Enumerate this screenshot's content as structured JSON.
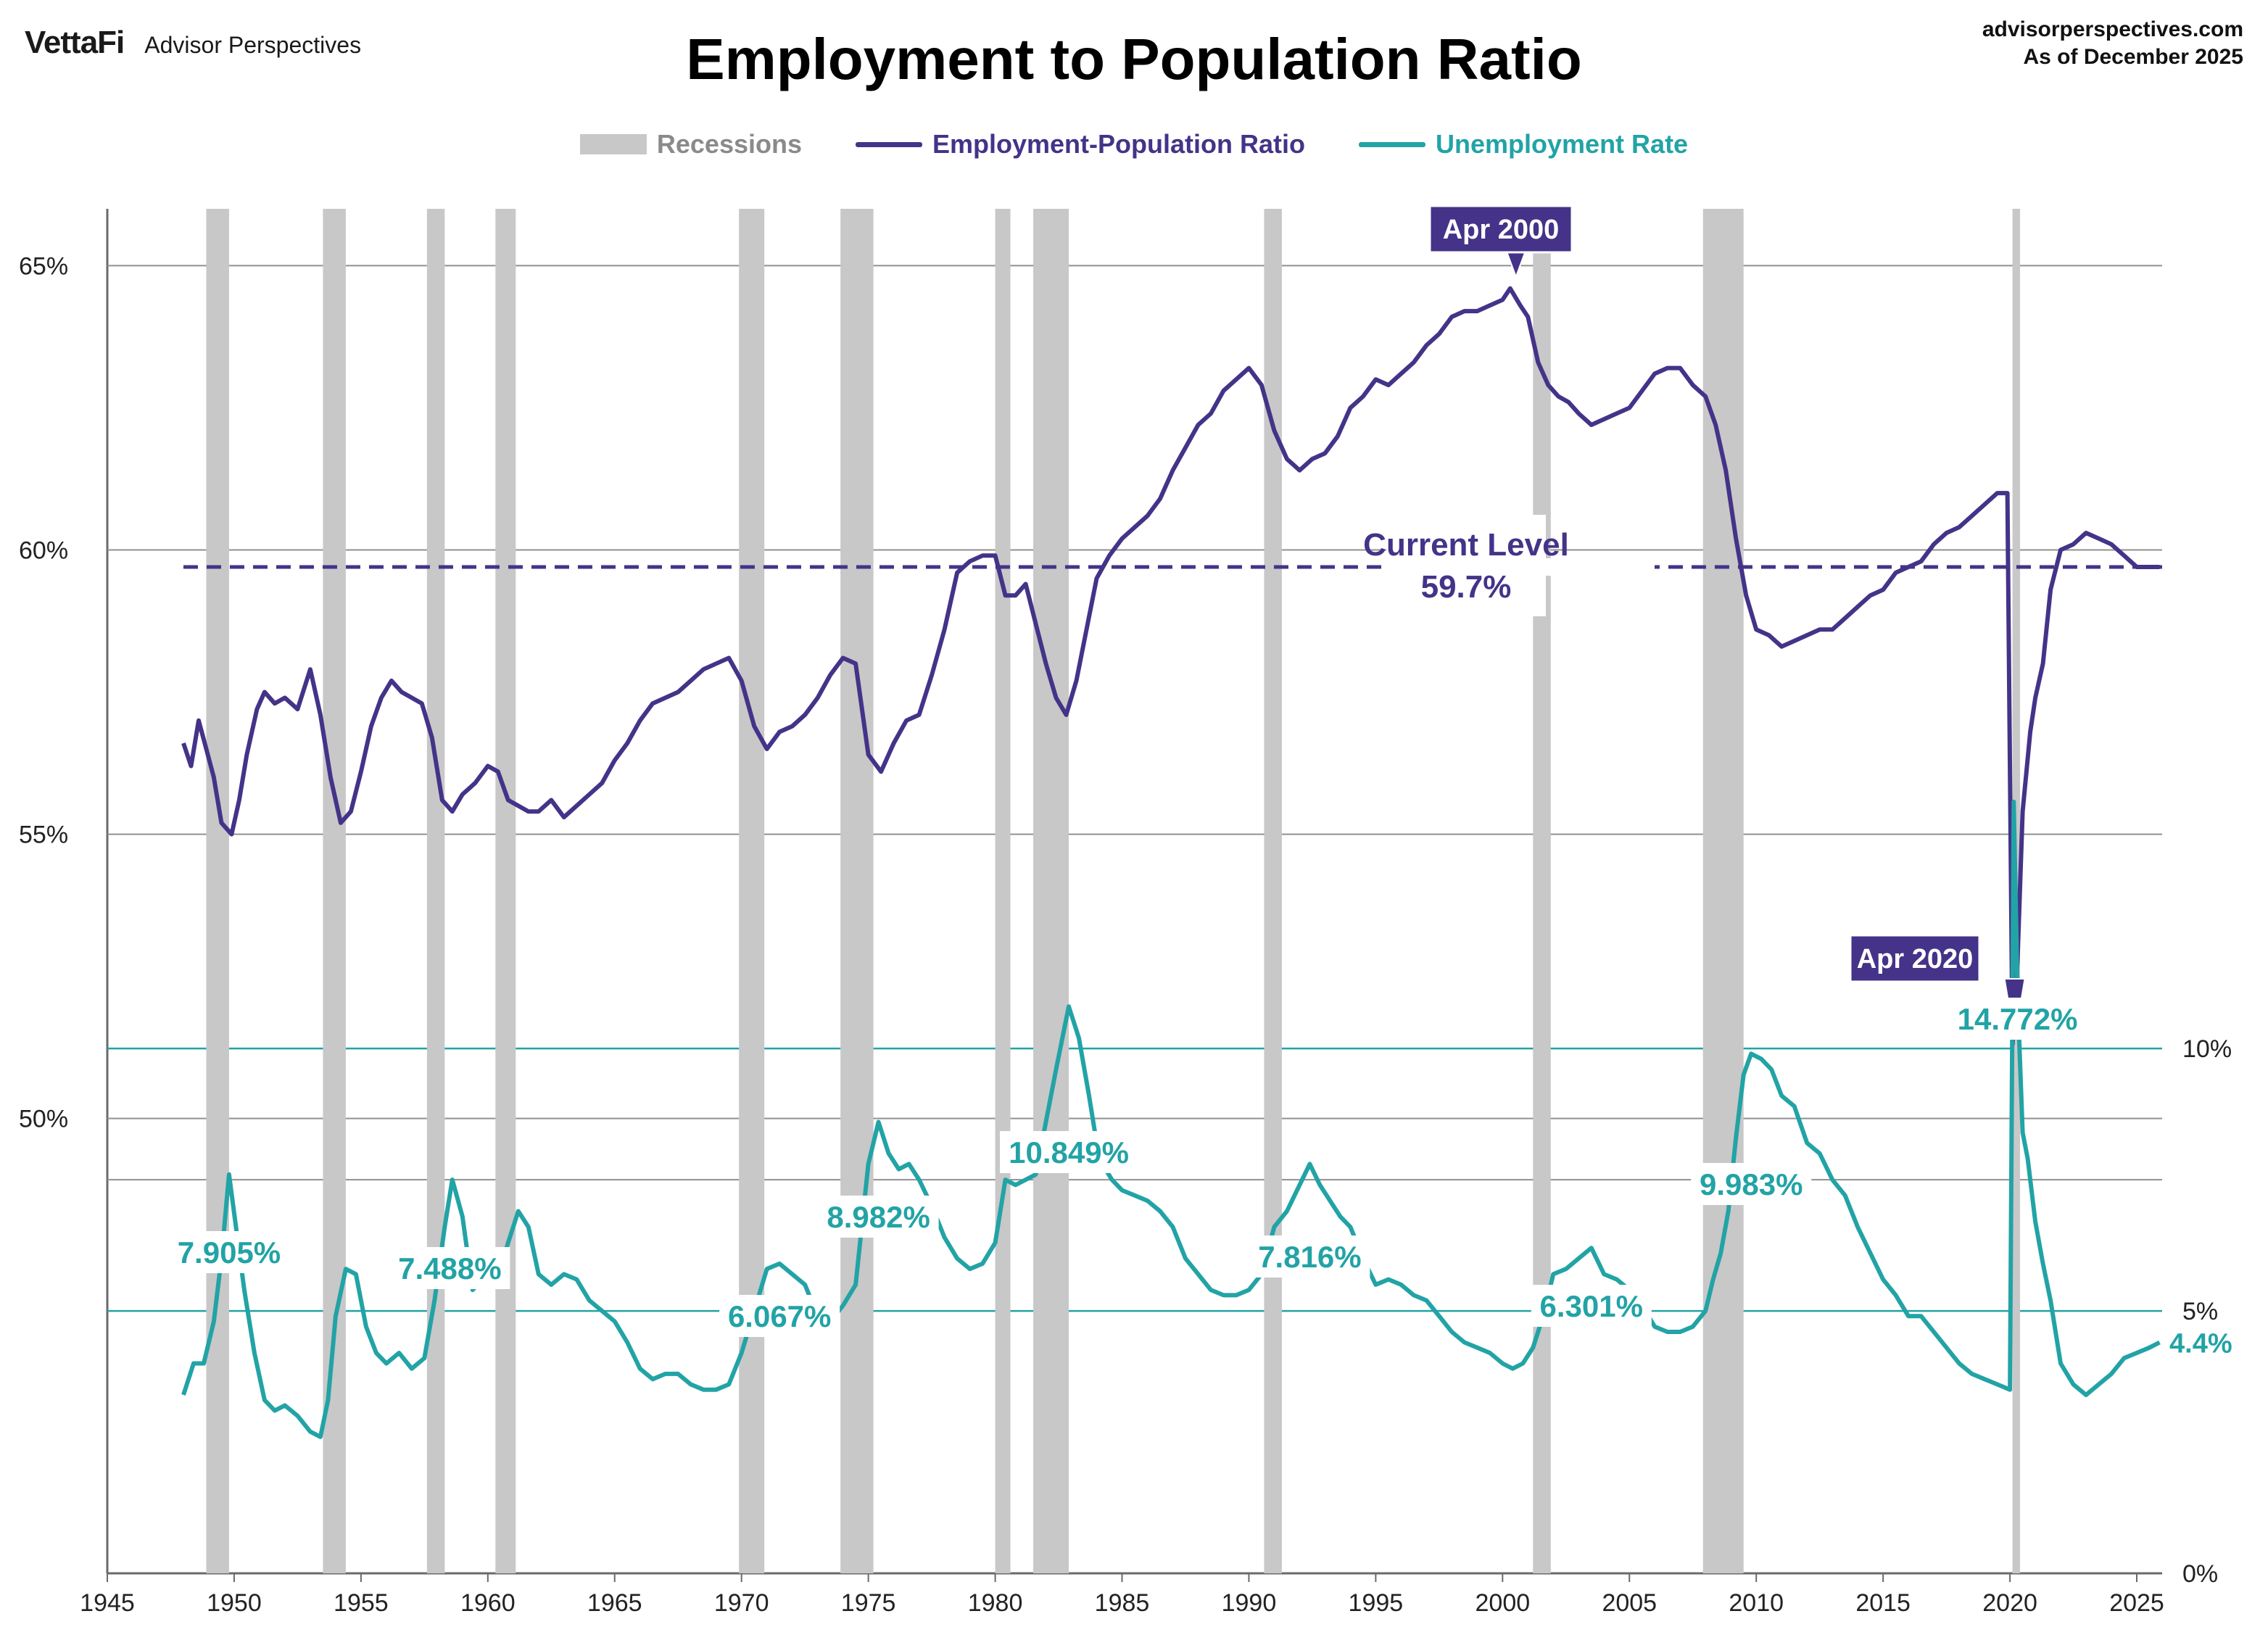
{
  "header": {
    "brand_logo": "VettaFi",
    "brand_sub": "Advisor Perspectives",
    "title": "Employment to Population Ratio",
    "source_line1": "advisorperspectives.com",
    "source_line2": "As of December 2025"
  },
  "legend": {
    "recessions": "Recessions",
    "epop": "Employment-Population Ratio",
    "unemp": "Unemployment Rate"
  },
  "colors": {
    "epop": "#443388",
    "unemp": "#22a3a6",
    "recession": "#c8c8c8",
    "grid": "#909090"
  },
  "chart_data": {
    "type": "line",
    "title": "Employment to Population Ratio",
    "x_ticks": [
      1945,
      1950,
      1955,
      1960,
      1965,
      1970,
      1975,
      1980,
      1985,
      1990,
      1995,
      2000,
      2005,
      2010,
      2015,
      2020,
      2025
    ],
    "xlim": [
      1945,
      2026
    ],
    "left_axis": {
      "ticks": [
        "50%",
        "55%",
        "60%",
        "65%"
      ],
      "values": [
        50,
        55,
        60,
        65
      ],
      "range": [
        42,
        66
      ]
    },
    "right_axis": {
      "ticks": [
        "0%",
        "5%",
        "10%"
      ],
      "values": [
        0,
        5,
        10
      ],
      "range": [
        0,
        26
      ]
    },
    "recessions": [
      [
        1948.9,
        1949.8
      ],
      [
        1953.5,
        1954.4
      ],
      [
        1957.6,
        1958.3
      ],
      [
        1960.3,
        1961.1
      ],
      [
        1969.9,
        1970.9
      ],
      [
        1973.9,
        1975.2
      ],
      [
        1980.0,
        1980.6
      ],
      [
        1981.5,
        1982.9
      ],
      [
        1990.6,
        1991.3
      ],
      [
        2001.2,
        2001.9
      ],
      [
        2007.9,
        2009.5
      ],
      [
        2020.1,
        2020.4
      ]
    ],
    "series": [
      {
        "name": "Employment-Population Ratio",
        "axis": "left",
        "x": [
          1948.0,
          1948.3,
          1948.6,
          1948.9,
          1949.2,
          1949.5,
          1949.9,
          1950.2,
          1950.5,
          1950.9,
          1951.2,
          1951.6,
          1952.0,
          1952.5,
          1953.0,
          1953.4,
          1953.8,
          1954.2,
          1954.6,
          1955.0,
          1955.4,
          1955.8,
          1956.2,
          1956.6,
          1957.0,
          1957.4,
          1957.8,
          1958.2,
          1958.6,
          1959.0,
          1959.5,
          1960.0,
          1960.4,
          1960.8,
          1961.2,
          1961.6,
          1962.0,
          1962.5,
          1963.0,
          1963.5,
          1964.0,
          1964.5,
          1965.0,
          1965.5,
          1966.0,
          1966.5,
          1967.0,
          1967.5,
          1968.0,
          1968.5,
          1969.0,
          1969.5,
          1970.0,
          1970.5,
          1971.0,
          1971.5,
          1972.0,
          1972.5,
          1973.0,
          1973.5,
          1974.0,
          1974.5,
          1975.0,
          1975.5,
          1976.0,
          1976.5,
          1977.0,
          1977.5,
          1978.0,
          1978.5,
          1979.0,
          1979.5,
          1980.0,
          1980.4,
          1980.8,
          1981.2,
          1981.6,
          1982.0,
          1982.4,
          1982.8,
          1983.2,
          1983.6,
          1984.0,
          1984.5,
          1985.0,
          1985.5,
          1986.0,
          1986.5,
          1987.0,
          1987.5,
          1988.0,
          1988.5,
          1989.0,
          1989.5,
          1990.0,
          1990.5,
          1991.0,
          1991.5,
          1992.0,
          1992.5,
          1993.0,
          1993.5,
          1994.0,
          1994.5,
          1995.0,
          1995.5,
          1996.0,
          1996.5,
          1997.0,
          1997.5,
          1998.0,
          1998.5,
          1999.0,
          1999.5,
          2000.0,
          2000.3,
          2000.7,
          2001.0,
          2001.4,
          2001.8,
          2002.2,
          2002.6,
          2003.0,
          2003.5,
          2004.0,
          2004.5,
          2005.0,
          2005.5,
          2006.0,
          2006.5,
          2007.0,
          2007.5,
          2008.0,
          2008.4,
          2008.8,
          2009.2,
          2009.6,
          2010.0,
          2010.5,
          2011.0,
          2011.5,
          2012.0,
          2012.5,
          2013.0,
          2013.5,
          2014.0,
          2014.5,
          2015.0,
          2015.5,
          2016.0,
          2016.5,
          2017.0,
          2017.5,
          2018.0,
          2018.5,
          2019.0,
          2019.5,
          2019.9,
          2020.1,
          2020.3,
          2020.5,
          2020.8,
          2021.0,
          2021.3,
          2021.6,
          2022.0,
          2022.5,
          2023.0,
          2023.5,
          2024.0,
          2024.5,
          2025.0,
          2025.5,
          2025.9
        ],
        "values": [
          56.6,
          56.2,
          57.0,
          56.5,
          56.0,
          55.2,
          55.0,
          55.6,
          56.4,
          57.2,
          57.5,
          57.3,
          57.4,
          57.2,
          57.9,
          57.1,
          56.0,
          55.2,
          55.4,
          56.1,
          56.9,
          57.4,
          57.7,
          57.5,
          57.4,
          57.3,
          56.7,
          55.6,
          55.4,
          55.7,
          55.9,
          56.2,
          56.1,
          55.6,
          55.5,
          55.4,
          55.4,
          55.6,
          55.3,
          55.5,
          55.7,
          55.9,
          56.3,
          56.6,
          57.0,
          57.3,
          57.4,
          57.5,
          57.7,
          57.9,
          58.0,
          58.1,
          57.7,
          56.9,
          56.5,
          56.8,
          56.9,
          57.1,
          57.4,
          57.8,
          58.1,
          58.0,
          56.4,
          56.1,
          56.6,
          57.0,
          57.1,
          57.8,
          58.6,
          59.6,
          59.8,
          59.9,
          59.9,
          59.2,
          59.2,
          59.4,
          58.7,
          58.0,
          57.4,
          57.1,
          57.7,
          58.6,
          59.5,
          59.9,
          60.2,
          60.4,
          60.6,
          60.9,
          61.4,
          61.8,
          62.2,
          62.4,
          62.8,
          63.0,
          63.2,
          62.9,
          62.1,
          61.6,
          61.4,
          61.6,
          61.7,
          62.0,
          62.5,
          62.7,
          63.0,
          62.9,
          63.1,
          63.3,
          63.6,
          63.8,
          64.1,
          64.2,
          64.2,
          64.3,
          64.4,
          64.6,
          64.3,
          64.1,
          63.3,
          62.9,
          62.7,
          62.6,
          62.4,
          62.2,
          62.3,
          62.4,
          62.5,
          62.8,
          63.1,
          63.2,
          63.2,
          62.9,
          62.7,
          62.2,
          61.4,
          60.2,
          59.2,
          58.6,
          58.5,
          58.3,
          58.4,
          58.5,
          58.6,
          58.6,
          58.8,
          59.0,
          59.2,
          59.3,
          59.6,
          59.7,
          59.8,
          60.1,
          60.3,
          60.4,
          60.6,
          60.8,
          61.0,
          61.0,
          51.3,
          52.8,
          55.4,
          56.8,
          57.4,
          58.0,
          59.3,
          60.0,
          60.1,
          60.3,
          60.2,
          60.1,
          59.9,
          59.7,
          59.7,
          59.7
        ]
      },
      {
        "name": "Unemployment Rate",
        "axis": "right",
        "x": [
          1948.0,
          1948.4,
          1948.8,
          1949.2,
          1949.5,
          1949.8,
          1950.1,
          1950.4,
          1950.8,
          1951.2,
          1951.6,
          1952.0,
          1952.5,
          1953.0,
          1953.4,
          1953.7,
          1954.0,
          1954.4,
          1954.8,
          1955.2,
          1955.6,
          1956.0,
          1956.5,
          1957.0,
          1957.5,
          1957.9,
          1958.3,
          1958.6,
          1959.0,
          1959.4,
          1959.8,
          1960.3,
          1960.8,
          1961.2,
          1961.6,
          1962.0,
          1962.5,
          1963.0,
          1963.5,
          1964.0,
          1964.5,
          1965.0,
          1965.5,
          1966.0,
          1966.5,
          1967.0,
          1967.5,
          1968.0,
          1968.5,
          1969.0,
          1969.5,
          1970.0,
          1970.5,
          1971.0,
          1971.5,
          1972.0,
          1972.5,
          1973.0,
          1973.5,
          1974.0,
          1974.5,
          1975.0,
          1975.4,
          1975.8,
          1976.2,
          1976.6,
          1977.0,
          1977.5,
          1978.0,
          1978.5,
          1979.0,
          1979.5,
          1980.0,
          1980.4,
          1980.8,
          1981.2,
          1981.6,
          1982.0,
          1982.4,
          1982.9,
          1983.3,
          1983.7,
          1984.1,
          1984.6,
          1985.0,
          1985.5,
          1986.0,
          1986.5,
          1987.0,
          1987.5,
          1988.0,
          1988.5,
          1989.0,
          1989.5,
          1990.0,
          1990.5,
          1991.0,
          1991.5,
          1992.0,
          1992.4,
          1992.8,
          1993.2,
          1993.6,
          1994.0,
          1994.5,
          1995.0,
          1995.5,
          1996.0,
          1996.5,
          1997.0,
          1997.5,
          1998.0,
          1998.5,
          1999.0,
          1999.5,
          2000.0,
          2000.4,
          2000.8,
          2001.2,
          2001.6,
          2002.0,
          2002.5,
          2003.0,
          2003.5,
          2004.0,
          2004.5,
          2005.0,
          2005.5,
          2006.0,
          2006.5,
          2007.0,
          2007.5,
          2008.0,
          2008.3,
          2008.6,
          2008.9,
          2009.2,
          2009.5,
          2009.8,
          2010.2,
          2010.6,
          2011.0,
          2011.5,
          2012.0,
          2012.5,
          2013.0,
          2013.5,
          2014.0,
          2014.5,
          2015.0,
          2015.5,
          2016.0,
          2016.5,
          2017.0,
          2017.5,
          2018.0,
          2018.5,
          2019.0,
          2019.5,
          2020.0,
          2020.15,
          2020.3,
          2020.5,
          2020.7,
          2021.0,
          2021.3,
          2021.6,
          2022.0,
          2022.5,
          2023.0,
          2023.5,
          2024.0,
          2024.5,
          2025.0,
          2025.5,
          2025.9
        ],
        "values": [
          3.4,
          4.0,
          4.0,
          4.8,
          6.0,
          7.6,
          6.5,
          5.4,
          4.2,
          3.3,
          3.1,
          3.2,
          3.0,
          2.7,
          2.6,
          3.3,
          4.9,
          5.8,
          5.7,
          4.7,
          4.2,
          4.0,
          4.2,
          3.9,
          4.1,
          5.2,
          6.6,
          7.5,
          6.8,
          5.4,
          5.6,
          5.5,
          6.3,
          6.9,
          6.6,
          5.7,
          5.5,
          5.7,
          5.6,
          5.2,
          5.0,
          4.8,
          4.4,
          3.9,
          3.7,
          3.8,
          3.8,
          3.6,
          3.5,
          3.5,
          3.6,
          4.2,
          5.0,
          5.8,
          5.9,
          5.7,
          5.5,
          4.9,
          4.8,
          5.1,
          5.5,
          7.8,
          8.6,
          8.0,
          7.7,
          7.8,
          7.5,
          7.0,
          6.4,
          6.0,
          5.8,
          5.9,
          6.3,
          7.5,
          7.4,
          7.5,
          7.6,
          8.6,
          9.6,
          10.8,
          10.2,
          9.1,
          7.9,
          7.5,
          7.3,
          7.2,
          7.1,
          6.9,
          6.6,
          6.0,
          5.7,
          5.4,
          5.3,
          5.3,
          5.4,
          5.7,
          6.6,
          6.9,
          7.4,
          7.8,
          7.4,
          7.1,
          6.8,
          6.6,
          6.0,
          5.5,
          5.6,
          5.5,
          5.3,
          5.2,
          4.9,
          4.6,
          4.4,
          4.3,
          4.2,
          4.0,
          3.9,
          4.0,
          4.3,
          4.9,
          5.7,
          5.8,
          6.0,
          6.2,
          5.7,
          5.6,
          5.4,
          5.1,
          4.7,
          4.6,
          4.6,
          4.7,
          5.0,
          5.6,
          6.1,
          6.9,
          8.3,
          9.5,
          9.9,
          9.8,
          9.6,
          9.1,
          8.9,
          8.2,
          8.0,
          7.5,
          7.2,
          6.6,
          6.1,
          5.6,
          5.3,
          4.9,
          4.9,
          4.6,
          4.3,
          4.0,
          3.8,
          3.7,
          3.6,
          3.5,
          14.7,
          11.0,
          8.4,
          7.9,
          6.7,
          5.9,
          5.2,
          4.0,
          3.6,
          3.4,
          3.6,
          3.8,
          4.1,
          4.2,
          4.3,
          4.4
        ]
      }
    ],
    "annotations": {
      "current_label_line1": "Current Level",
      "current_label_line2": "59.7%",
      "current_value": 59.7,
      "peak_label": "Apr 2000",
      "peak_x": 2000.3,
      "peak_y": 64.6,
      "trough_label": "Apr 2020",
      "trough_x": 2020.3,
      "trough_y": 51.3,
      "last_unemp_label": "4.4%",
      "last_unemp_x": 2025.9,
      "last_unemp_y": 4.4,
      "unemp_peaks": [
        {
          "label": "7.905%",
          "x": 1949.8,
          "y": 7.9
        },
        {
          "label": "7.488%",
          "x": 1958.5,
          "y": 7.5
        },
        {
          "label": "6.067%",
          "x": 1971.5,
          "y": 6.067
        },
        {
          "label": "8.982%",
          "x": 1975.4,
          "y": 8.982
        },
        {
          "label": "10.849%",
          "x": 1982.9,
          "y": 10.849
        },
        {
          "label": "7.816%",
          "x": 1992.4,
          "y": 7.816
        },
        {
          "label": "6.301%",
          "x": 2003.5,
          "y": 6.301
        },
        {
          "label": "9.983%",
          "x": 2009.8,
          "y": 9.983
        },
        {
          "label": "14.772%",
          "x": 2020.3,
          "y": 14.772
        }
      ]
    }
  }
}
